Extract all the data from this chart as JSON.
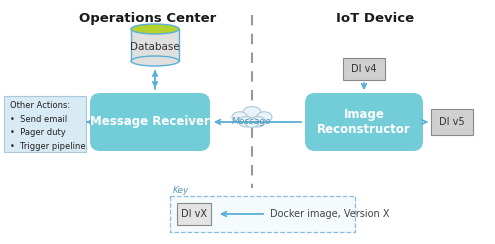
{
  "title_left": "Operations Center",
  "title_right": "IoT Device",
  "msg_receiver_label": "Message Receiver",
  "img_reconstructor_label": "Image\nReconstructor",
  "database_label": "Database",
  "message_label": "Message",
  "di_v4_label": "DI v4",
  "di_v5_label": "DI v5",
  "di_vx_label": "DI vX",
  "other_actions_text": "Other Actions:\n•  Send email\n•  Pager duty\n•  Trigger pipeline",
  "key_label": "Key",
  "key_desc": "Docker image, Version X",
  "bg_color": "#ffffff",
  "cyan_box_color": "#72cdd8",
  "light_blue_box_color": "#d8eaf4",
  "arrow_color": "#5bafd6",
  "dashed_line_color": "#999999",
  "db_top_color": "#b5d22e",
  "db_body_color": "#e0e0e0",
  "db_border_color": "#5bafd6",
  "gray_box_color": "#d0d0d0",
  "gray_box_edge": "#888888",
  "key_border_color": "#88bbdd",
  "key_bg_color": "#f5fafd"
}
